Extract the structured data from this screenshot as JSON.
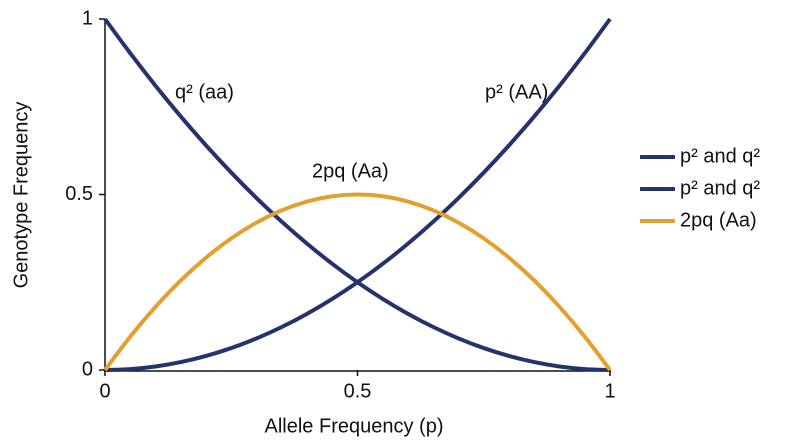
{
  "chart_data": {
    "type": "line",
    "x_label": "Allele Frequency (p)",
    "y_label": "Genotype Frequency",
    "x": [
      0,
      0.05,
      0.1,
      0.15,
      0.2,
      0.25,
      0.3,
      0.35,
      0.4,
      0.45,
      0.5,
      0.55,
      0.6,
      0.65,
      0.7,
      0.75,
      0.8,
      0.85,
      0.9,
      0.95,
      1
    ],
    "series": [
      {
        "name": "p² and q²",
        "color": "#24336e",
        "values": [
          1,
          0.9025,
          0.81,
          0.7225,
          0.64,
          0.5625,
          0.49,
          0.4225,
          0.36,
          0.3025,
          0.25,
          0.2025,
          0.16,
          0.1225,
          0.09,
          0.0625,
          0.04,
          0.0225,
          0.01,
          0.0025,
          0
        ]
      },
      {
        "name": "p² and q²",
        "color": "#24336e",
        "values": [
          0,
          0.0025,
          0.01,
          0.0225,
          0.04,
          0.0625,
          0.09,
          0.1225,
          0.16,
          0.2025,
          0.25,
          0.3025,
          0.36,
          0.4225,
          0.49,
          0.5625,
          0.64,
          0.7225,
          0.81,
          0.9025,
          1
        ]
      },
      {
        "name": "2pq (Aa)",
        "color": "#e3a02f",
        "values": [
          0,
          0.095,
          0.18,
          0.255,
          0.32,
          0.375,
          0.42,
          0.455,
          0.48,
          0.495,
          0.5,
          0.495,
          0.48,
          0.455,
          0.42,
          0.375,
          0.32,
          0.255,
          0.18,
          0.095,
          0
        ]
      }
    ],
    "annotations": [
      "q² (aa)",
      "p² (AA)",
      "2pq (Aa)"
    ],
    "xlim": [
      0,
      1
    ],
    "xticks": [
      0,
      0.5,
      1
    ],
    "ylim": [
      0,
      1
    ],
    "yticks": [
      0,
      0.5,
      1
    ],
    "grid": false,
    "legend": "right"
  }
}
